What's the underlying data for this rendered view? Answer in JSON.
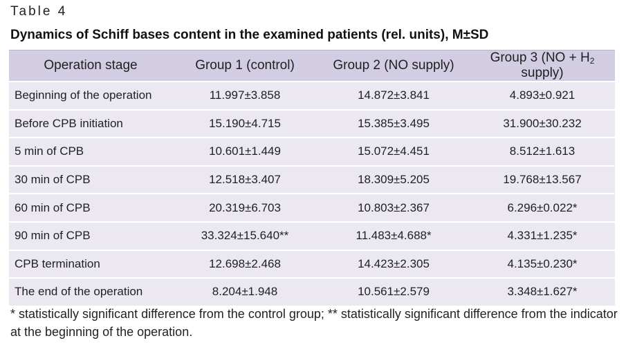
{
  "table_label": "Table 4",
  "title": "Dynamics of Schiff bases content in the examined patients (rel. units), M±SD",
  "headers": {
    "stage": "Operation stage",
    "group1": "Group 1 (control)",
    "group2": "Group 2 (NO supply)",
    "group3_prefix": "Group 3 (NO + H",
    "group3_sub": "2",
    "group3_suffix": " supply)"
  },
  "rows": [
    {
      "stage": "Beginning of the operation",
      "g1": "11.997±3.858",
      "g2": "14.872±3.841",
      "g3": "4.893±0.921"
    },
    {
      "stage": "Before CPB initiation",
      "g1": "15.190±4.715",
      "g2": "15.385±3.495",
      "g3": "31.900±30.232"
    },
    {
      "stage": "5 min of CPB",
      "g1": "10.601±1.449",
      "g2": "15.072±4.451",
      "g3": "8.512±1.613"
    },
    {
      "stage": "30 min of CPB",
      "g1": "12.518±3.407",
      "g2": "18.309±5.205",
      "g3": "19.768±13.567"
    },
    {
      "stage": "60 min of CPB",
      "g1": "20.319±6.703",
      "g2": "10.803±2.367",
      "g3": "6.296±0.022*"
    },
    {
      "stage": "90 min of CPB",
      "g1": "33.324±15.640**",
      "g2": "11.483±4.688*",
      "g3": "4.331±1.235*"
    },
    {
      "stage": "CPB termination",
      "g1": "12.698±2.468",
      "g2": "14.423±2.305",
      "g3": "4.135±0.230*"
    },
    {
      "stage": "The end of the operation",
      "g1": "8.204±1.948",
      "g2": "10.561±2.579",
      "g3": "3.348±1.627*"
    }
  ],
  "footnote": "* statistically significant difference from the control group; ** statistically significant difference from the indicator at the beginning of the operation."
}
